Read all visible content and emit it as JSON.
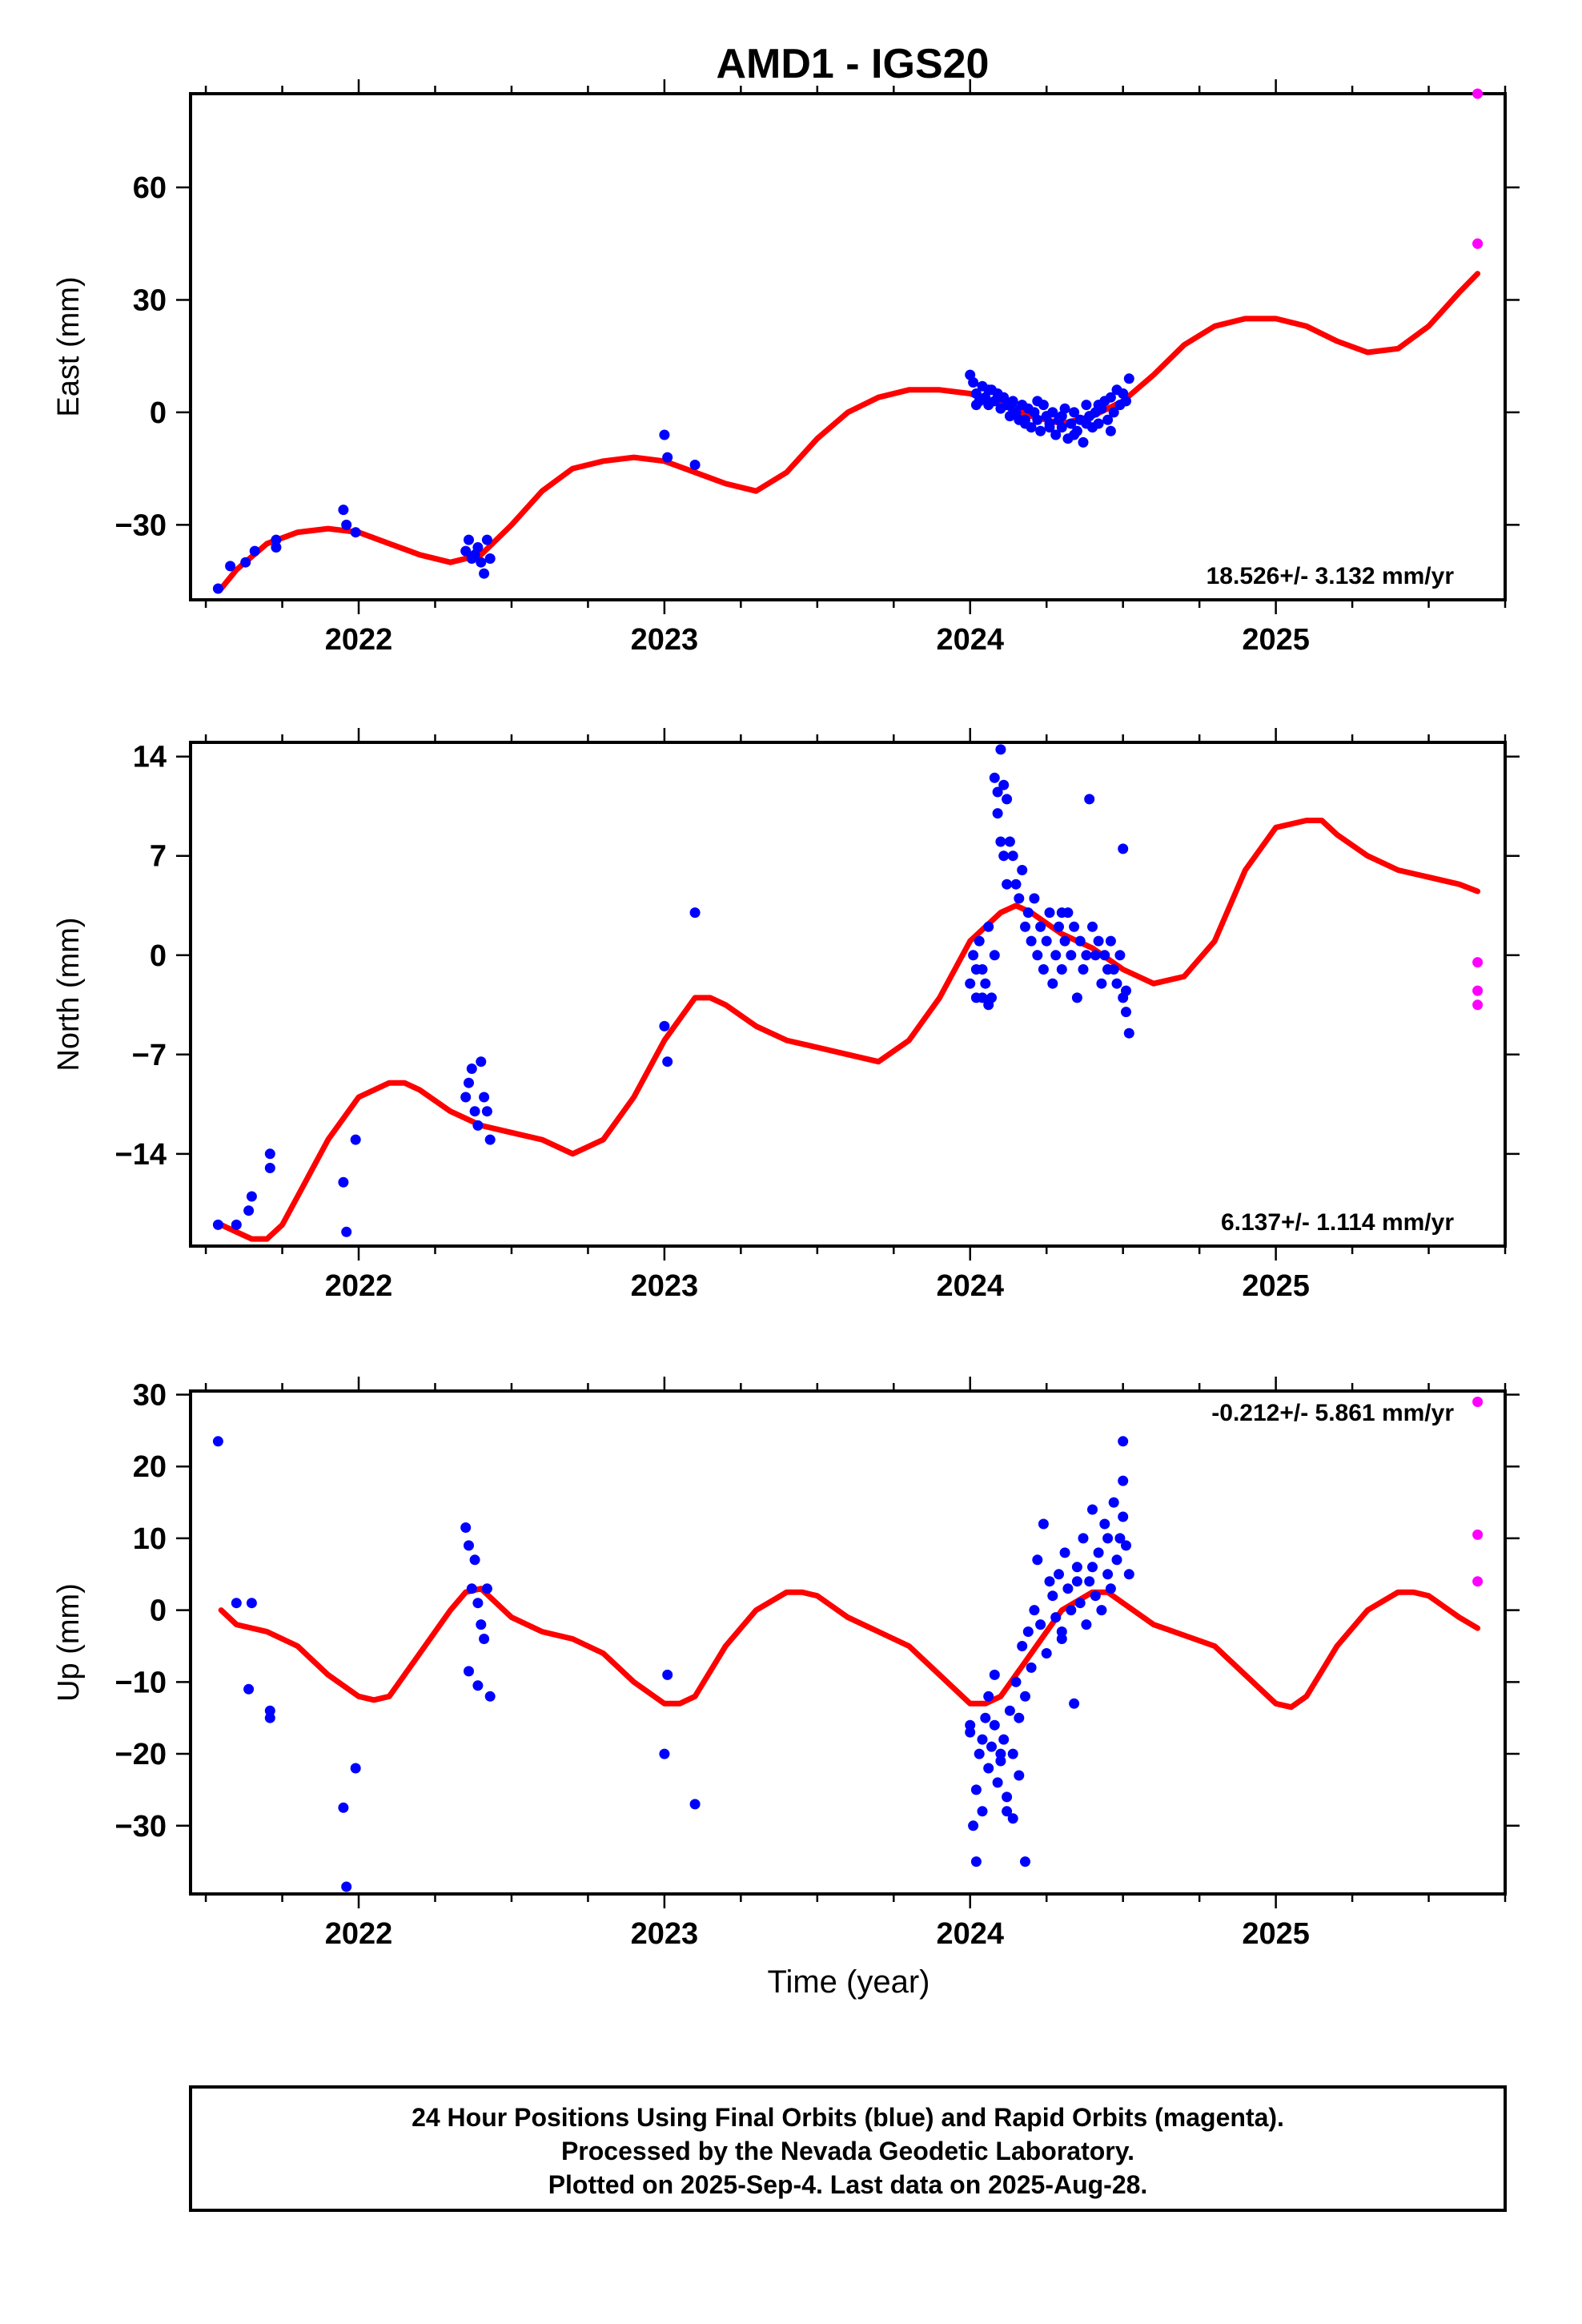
{
  "header": {
    "title": "AMD1 - IGS20"
  },
  "colors": {
    "final": "#0000ff",
    "rapid": "#ff00ff",
    "model": "#ff0000"
  },
  "footer": {
    "lines": [
      "24 Hour Positions Using Final Orbits (blue) and Rapid Orbits (magenta).",
      "Processed by the Nevada Geodetic Laboratory.",
      "Plotted on 2025-Sep-4. Last data on 2025-Aug-28."
    ]
  },
  "chart_data": [
    {
      "type": "scatter",
      "ylabel": "East (mm)",
      "xlabel": "",
      "xlim": [
        2021.45,
        2025.75
      ],
      "ylim": [
        -50,
        85
      ],
      "xticks": [
        "2022",
        "2023",
        "2024",
        "2025"
      ],
      "yticks": [
        "-30",
        "0",
        "30",
        "60"
      ],
      "rate_label": "18.526+/- 3.132 mm/yr",
      "rate_position": "bottom-right",
      "model": {
        "x": [
          2021.55,
          2021.6,
          2021.7,
          2021.8,
          2021.9,
          2022.0,
          2022.1,
          2022.2,
          2022.3,
          2022.4,
          2022.5,
          2022.6,
          2022.7,
          2022.8,
          2022.9,
          2023.0,
          2023.1,
          2023.2,
          2023.3,
          2023.4,
          2023.5,
          2023.6,
          2023.7,
          2023.8,
          2023.9,
          2024.0,
          2024.1,
          2024.2,
          2024.3,
          2024.4,
          2024.5,
          2024.6,
          2024.7,
          2024.8,
          2024.9,
          2025.0,
          2025.1,
          2025.2,
          2025.3,
          2025.4,
          2025.5,
          2025.6,
          2025.66
        ],
        "y": [
          -47,
          -42,
          -35,
          -32,
          -31,
          -32,
          -35,
          -38,
          -40,
          -38,
          -30,
          -21,
          -15,
          -13,
          -12,
          -13,
          -16,
          -19,
          -21,
          -16,
          -7,
          0,
          4,
          6,
          6,
          5,
          2,
          -1,
          -3,
          -1,
          3,
          10,
          18,
          23,
          25,
          25,
          23,
          19,
          16,
          17,
          23,
          32,
          37
        ]
      },
      "final": {
        "x": [
          2021.54,
          2021.58,
          2021.63,
          2021.66,
          2021.73,
          2021.73,
          2021.95,
          2021.96,
          2021.99,
          2022.35,
          2022.36,
          2022.37,
          2022.38,
          2022.39,
          2022.4,
          2022.41,
          2022.42,
          2022.43,
          2023.0,
          2023.01,
          2023.1,
          2024.0,
          2024.01,
          2024.02,
          2024.03,
          2024.04,
          2024.05,
          2024.06,
          2024.07,
          2024.08,
          2024.09,
          2024.1,
          2024.11,
          2024.12,
          2024.13,
          2024.14,
          2024.15,
          2024.16,
          2024.17,
          2024.18,
          2024.19,
          2024.2,
          2024.21,
          2024.22,
          2024.23,
          2024.24,
          2024.25,
          2024.26,
          2024.27,
          2024.28,
          2024.29,
          2024.3,
          2024.31,
          2024.32,
          2024.33,
          2024.34,
          2024.35,
          2024.36,
          2024.37,
          2024.38,
          2024.39,
          2024.4,
          2024.41,
          2024.42,
          2024.43,
          2024.44,
          2024.45,
          2024.46,
          2024.47,
          2024.48,
          2024.49,
          2024.5,
          2024.51,
          2024.52,
          2024.02,
          2024.06,
          2024.1,
          2024.14,
          2024.18,
          2024.22,
          2024.26,
          2024.3,
          2024.34,
          2024.38,
          2024.42,
          2024.46,
          2024.5
        ],
        "y": [
          -47,
          -41,
          -40,
          -37,
          -36,
          -34,
          -26,
          -30,
          -32,
          -37,
          -34,
          -39,
          -38,
          -36,
          -40,
          -43,
          -34,
          -39,
          -6,
          -12,
          -14,
          10,
          8,
          5,
          3,
          7,
          4,
          2,
          6,
          3,
          5,
          1,
          4,
          2,
          -1,
          3,
          0,
          -2,
          2,
          -3,
          1,
          -4,
          0,
          -2,
          -5,
          2,
          -1,
          -3,
          0,
          -6,
          -2,
          -4,
          1,
          -7,
          -3,
          0,
          -5,
          -2,
          -8,
          2,
          -1,
          -4,
          0,
          -3,
          1,
          3,
          -2,
          4,
          0,
          6,
          2,
          5,
          3,
          9,
          2,
          6,
          4,
          1,
          -2,
          3,
          -4,
          -1,
          -6,
          -3,
          2,
          -5,
          5
        ]
      },
      "rapid": {
        "x": [
          2025.66,
          2025.66,
          2025.66
        ],
        "y": [
          85,
          45,
          45
        ]
      }
    },
    {
      "type": "scatter",
      "ylabel": "North (mm)",
      "xlabel": "",
      "xlim": [
        2021.45,
        2025.75
      ],
      "ylim": [
        -20.5,
        15
      ],
      "xticks": [
        "2022",
        "2023",
        "2024",
        "2025"
      ],
      "yticks": [
        "-14",
        "-7",
        "0",
        "7",
        "14"
      ],
      "rate_label": "6.137+/- 1.114 mm/yr",
      "rate_position": "bottom-right",
      "model": {
        "x": [
          2021.55,
          2021.6,
          2021.65,
          2021.7,
          2021.75,
          2021.8,
          2021.9,
          2022.0,
          2022.1,
          2022.15,
          2022.2,
          2022.3,
          2022.4,
          2022.5,
          2022.6,
          2022.7,
          2022.8,
          2022.9,
          2023.0,
          2023.1,
          2023.15,
          2023.2,
          2023.3,
          2023.4,
          2023.5,
          2023.6,
          2023.7,
          2023.8,
          2023.9,
          2024.0,
          2024.1,
          2024.15,
          2024.2,
          2024.3,
          2024.4,
          2024.5,
          2024.6,
          2024.7,
          2024.8,
          2024.9,
          2025.0,
          2025.1,
          2025.15,
          2025.2,
          2025.3,
          2025.4,
          2025.5,
          2025.6,
          2025.66
        ],
        "y": [
          -19,
          -19.5,
          -20,
          -20,
          -19,
          -17,
          -13,
          -10,
          -9,
          -9,
          -9.5,
          -11,
          -12,
          -12.5,
          -13,
          -14,
          -13,
          -10,
          -6,
          -3,
          -3,
          -3.5,
          -5,
          -6,
          -6.5,
          -7,
          -7.5,
          -6,
          -3,
          1,
          3,
          3.5,
          3,
          1.5,
          0.5,
          -1,
          -2,
          -1.5,
          1,
          6,
          9,
          9.5,
          9.5,
          8.5,
          7,
          6,
          5.5,
          5,
          4.5
        ]
      },
      "final": {
        "x": [
          2021.54,
          2021.6,
          2021.64,
          2021.65,
          2021.71,
          2021.71,
          2021.95,
          2021.96,
          2021.99,
          2022.35,
          2022.36,
          2022.37,
          2022.38,
          2022.39,
          2022.4,
          2022.41,
          2022.42,
          2022.43,
          2023.0,
          2023.01,
          2023.1,
          2024.0,
          2024.01,
          2024.02,
          2024.03,
          2024.04,
          2024.05,
          2024.06,
          2024.07,
          2024.08,
          2024.09,
          2024.1,
          2024.11,
          2024.12,
          2024.13,
          2024.14,
          2024.15,
          2024.16,
          2024.17,
          2024.18,
          2024.19,
          2024.2,
          2024.21,
          2024.22,
          2024.23,
          2024.24,
          2024.25,
          2024.26,
          2024.27,
          2024.28,
          2024.29,
          2024.3,
          2024.31,
          2024.32,
          2024.33,
          2024.34,
          2024.35,
          2024.36,
          2024.37,
          2024.38,
          2024.39,
          2024.4,
          2024.41,
          2024.42,
          2024.43,
          2024.44,
          2024.45,
          2024.46,
          2024.47,
          2024.48,
          2024.49,
          2024.5,
          2024.51,
          2024.52,
          2024.08,
          2024.09,
          2024.1,
          2024.11,
          2024.12,
          2024.02,
          2024.04,
          2024.06,
          2024.3,
          2024.45,
          2024.5,
          2024.51
        ],
        "y": [
          -19,
          -19,
          -18,
          -17,
          -14,
          -15,
          -16,
          -19.5,
          -13,
          -10,
          -9,
          -8,
          -11,
          -12,
          -7.5,
          -10,
          -11,
          -13,
          -5,
          -7.5,
          3,
          -2,
          0,
          -3,
          1,
          -1,
          -2,
          2,
          -3,
          0,
          10,
          14.5,
          12,
          11,
          8,
          7,
          5,
          4,
          6,
          2,
          3,
          1,
          4,
          0,
          2,
          -1,
          1,
          3,
          -2,
          0,
          2,
          -1,
          1,
          3,
          0,
          2,
          -3,
          1,
          -1,
          0,
          11,
          2,
          0,
          1,
          -2,
          0,
          -1,
          1,
          -1,
          -2,
          0,
          -3,
          -4,
          -5.5,
          12.5,
          11.5,
          8,
          7,
          5,
          -1,
          -3,
          -3.5,
          3,
          -1,
          7.5,
          -2.5
        ]
      },
      "rapid": {
        "x": [
          2025.66,
          2025.66,
          2025.66
        ],
        "y": [
          -0.5,
          -2.5,
          -3.5
        ]
      }
    },
    {
      "type": "scatter",
      "ylabel": "Up (mm)",
      "xlabel": "Time (year)",
      "xlim": [
        2021.45,
        2025.75
      ],
      "ylim": [
        -39.5,
        30.5
      ],
      "xticks": [
        "2022",
        "2023",
        "2024",
        "2025"
      ],
      "yticks": [
        "-30",
        "-20",
        "-10",
        "0",
        "10",
        "20",
        "30"
      ],
      "rate_label": "-0.212+/- 5.861 mm/yr",
      "rate_position": "top-right",
      "model": {
        "x": [
          2021.55,
          2021.6,
          2021.7,
          2021.8,
          2021.9,
          2022.0,
          2022.05,
          2022.1,
          2022.2,
          2022.3,
          2022.35,
          2022.4,
          2022.5,
          2022.6,
          2022.7,
          2022.8,
          2022.9,
          2023.0,
          2023.05,
          2023.1,
          2023.2,
          2023.3,
          2023.4,
          2023.45,
          2023.5,
          2023.6,
          2023.7,
          2023.8,
          2023.9,
          2024.0,
          2024.05,
          2024.1,
          2024.2,
          2024.3,
          2024.4,
          2024.45,
          2024.5,
          2024.6,
          2024.7,
          2024.8,
          2024.9,
          2025.0,
          2025.05,
          2025.1,
          2025.2,
          2025.3,
          2025.4,
          2025.45,
          2025.5,
          2025.6,
          2025.66
        ],
        "y": [
          0,
          -2,
          -3,
          -5,
          -9,
          -12,
          -12.5,
          -12,
          -6,
          0,
          2.5,
          3,
          -1,
          -3,
          -4,
          -6,
          -10,
          -13,
          -13,
          -12,
          -5,
          0,
          2.5,
          2.5,
          2,
          -1,
          -3,
          -5,
          -9,
          -13,
          -13,
          -12,
          -6,
          0,
          2.5,
          2.5,
          1,
          -2,
          -3.5,
          -5,
          -9,
          -13,
          -13.5,
          -12,
          -5,
          0,
          2.5,
          2.5,
          2,
          -1,
          -2.5
        ]
      },
      "final": {
        "x": [
          2021.54,
          2021.6,
          2021.64,
          2021.65,
          2021.71,
          2021.71,
          2021.95,
          2021.96,
          2021.99,
          2022.35,
          2022.36,
          2022.37,
          2022.38,
          2022.39,
          2022.4,
          2022.41,
          2022.42,
          2022.43,
          2022.36,
          2022.39,
          2023.0,
          2023.01,
          2023.1,
          2024.0,
          2024.01,
          2024.02,
          2024.03,
          2024.04,
          2024.05,
          2024.06,
          2024.07,
          2024.08,
          2024.09,
          2024.1,
          2024.11,
          2024.12,
          2024.13,
          2024.14,
          2024.15,
          2024.16,
          2024.17,
          2024.18,
          2024.19,
          2024.2,
          2024.21,
          2024.22,
          2024.23,
          2024.24,
          2024.25,
          2024.26,
          2024.27,
          2024.28,
          2024.29,
          2024.3,
          2024.31,
          2024.32,
          2024.33,
          2024.34,
          2024.35,
          2024.36,
          2024.37,
          2024.38,
          2024.39,
          2024.4,
          2024.41,
          2024.42,
          2024.43,
          2024.44,
          2024.45,
          2024.46,
          2024.47,
          2024.48,
          2024.49,
          2024.5,
          2024.51,
          2024.52,
          2024.0,
          2024.02,
          2024.04,
          2024.06,
          2024.08,
          2024.1,
          2024.12,
          2024.14,
          2024.16,
          2024.18,
          2024.3,
          2024.35,
          2024.4,
          2024.45,
          2024.5,
          2024.5
        ],
        "y": [
          23.5,
          1,
          -11,
          1,
          -14,
          -15,
          -27.5,
          -38.5,
          -22,
          11.5,
          9,
          3,
          7,
          1,
          -2,
          -4,
          3,
          -12,
          -8.5,
          -10.5,
          -20,
          -9,
          -27,
          -17,
          -30,
          -25,
          -20,
          -18,
          -15,
          -22,
          -19,
          -16,
          -24,
          -21,
          -18,
          -26,
          -14,
          -20,
          -10,
          -15,
          -5,
          -12,
          -3,
          -8,
          0,
          7,
          -2,
          12,
          -6,
          4,
          2,
          -1,
          5,
          -3,
          8,
          3,
          0,
          -13,
          6,
          1,
          10,
          -2,
          4,
          14,
          2,
          8,
          0,
          12,
          5,
          3,
          15,
          7,
          10,
          18,
          9,
          5,
          -16,
          -35,
          -28,
          -12,
          -9,
          -20,
          -28,
          -29,
          -23,
          -35,
          -4,
          4,
          6,
          10,
          13,
          23.5
        ]
      },
      "rapid": {
        "x": [
          2025.66,
          2025.66,
          2025.66
        ],
        "y": [
          29,
          10.5,
          4
        ]
      }
    }
  ]
}
